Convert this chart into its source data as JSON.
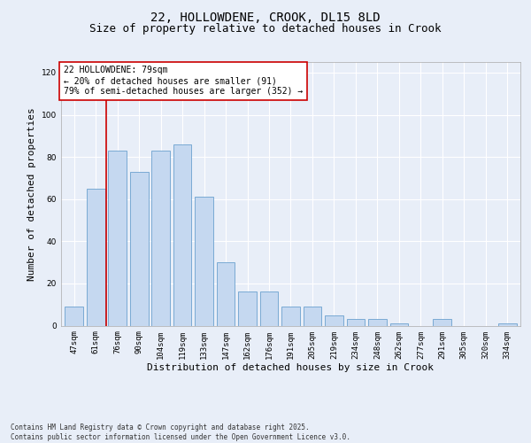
{
  "title1": "22, HOLLOWDENE, CROOK, DL15 8LD",
  "title2": "Size of property relative to detached houses in Crook",
  "xlabel": "Distribution of detached houses by size in Crook",
  "ylabel": "Number of detached properties",
  "categories": [
    "47sqm",
    "61sqm",
    "76sqm",
    "90sqm",
    "104sqm",
    "119sqm",
    "133sqm",
    "147sqm",
    "162sqm",
    "176sqm",
    "191sqm",
    "205sqm",
    "219sqm",
    "234sqm",
    "248sqm",
    "262sqm",
    "277sqm",
    "291sqm",
    "305sqm",
    "320sqm",
    "334sqm"
  ],
  "values": [
    9,
    65,
    83,
    73,
    83,
    86,
    61,
    30,
    16,
    16,
    9,
    9,
    5,
    3,
    3,
    1,
    0,
    3,
    0,
    0,
    1
  ],
  "bar_color": "#c5d8f0",
  "bar_edge_color": "#7aaad4",
  "vline_x": 1.5,
  "vline_color": "#cc0000",
  "annotation_text": "22 HOLLOWDENE: 79sqm\n← 20% of detached houses are smaller (91)\n79% of semi-detached houses are larger (352) →",
  "annotation_box_color": "#cc0000",
  "ylim": [
    0,
    125
  ],
  "yticks": [
    0,
    20,
    40,
    60,
    80,
    100,
    120
  ],
  "background_color": "#e8eef8",
  "plot_bg_color": "#e8eef8",
  "footer_text": "Contains HM Land Registry data © Crown copyright and database right 2025.\nContains public sector information licensed under the Open Government Licence v3.0.",
  "title_fontsize": 10,
  "subtitle_fontsize": 9,
  "tick_fontsize": 6.5,
  "label_fontsize": 8,
  "ann_fontsize": 7,
  "footer_fontsize": 5.5
}
